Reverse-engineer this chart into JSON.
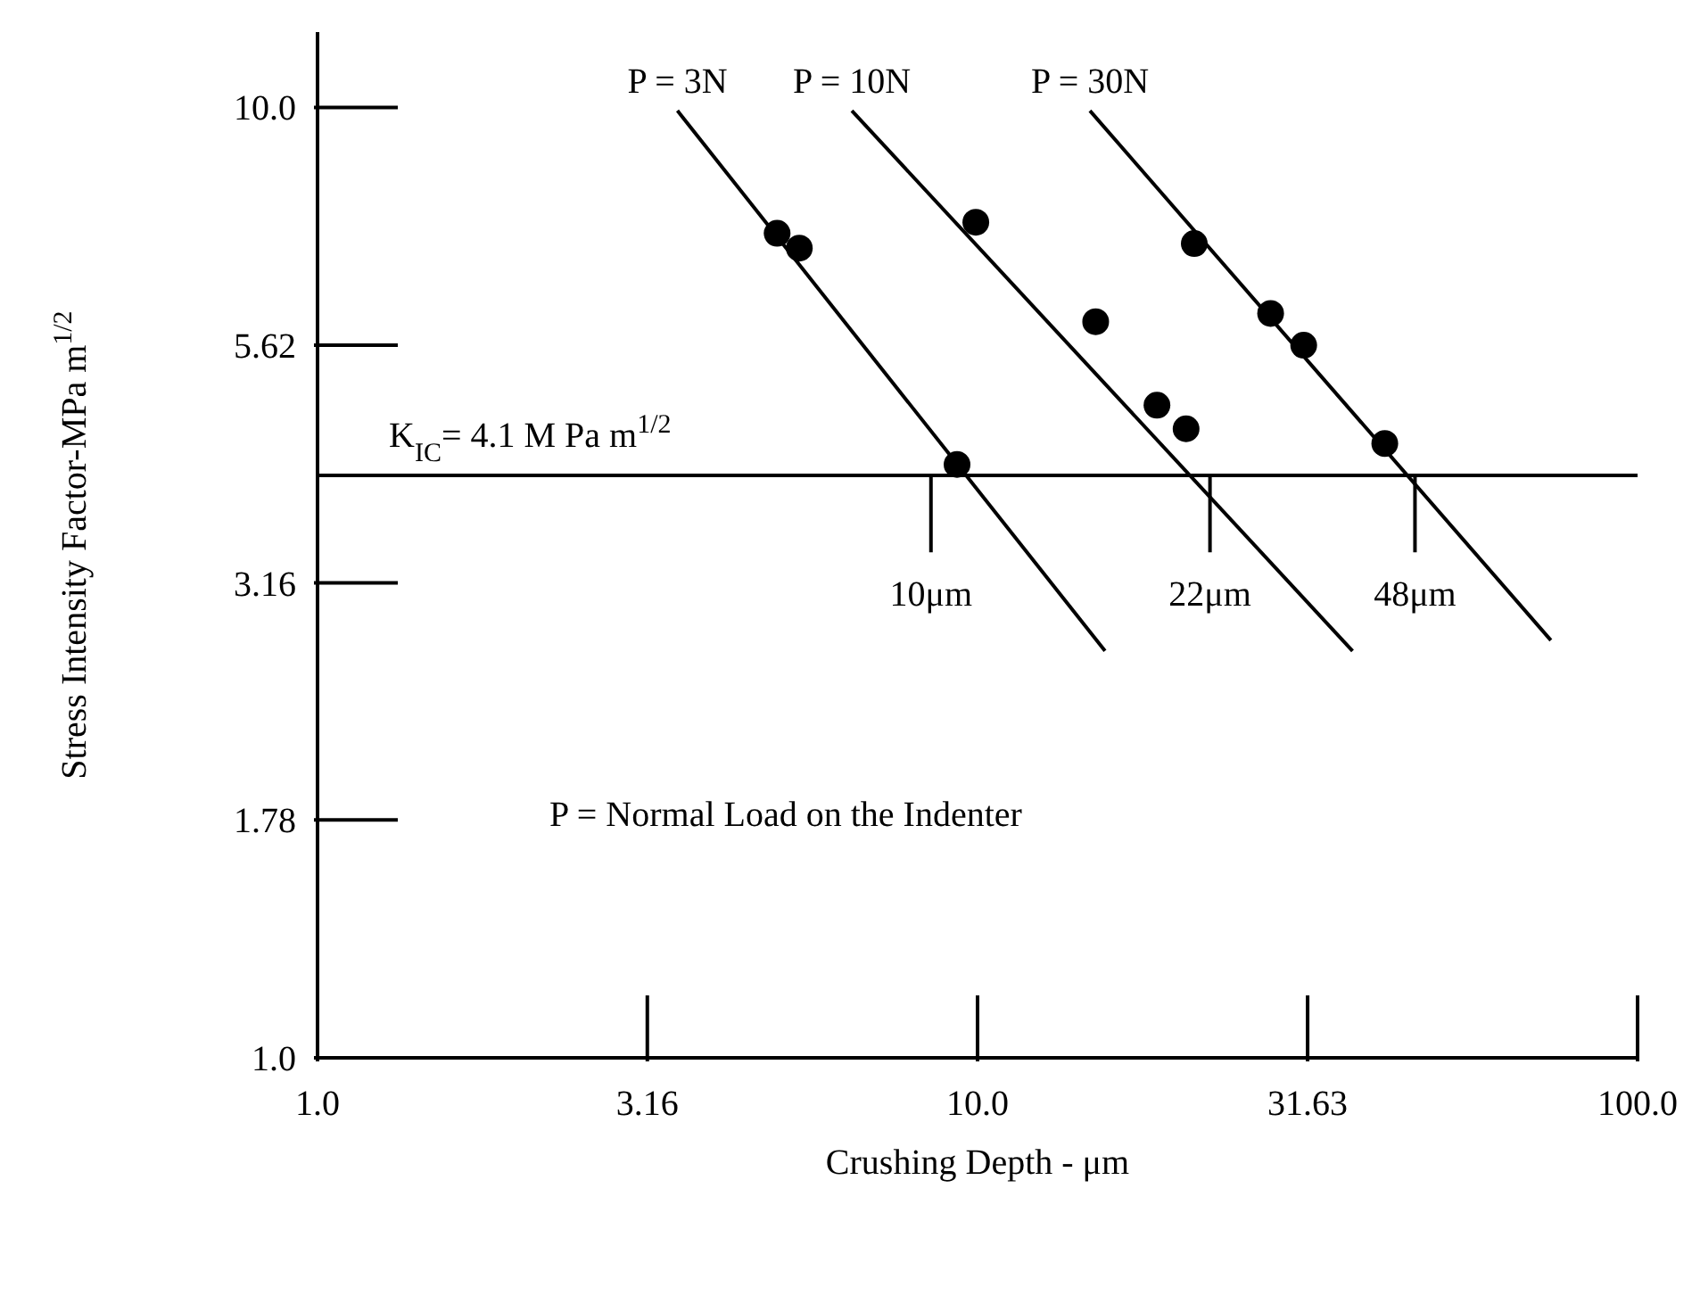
{
  "chart_data": {
    "type": "scatter",
    "xlabel": "Crushing Depth - μm",
    "ylabel": "Stress Intensity Factor-MPa m$^{1/2}$",
    "log": "xy",
    "xlim": [
      1,
      100
    ],
    "ylim": [
      1,
      12
    ],
    "xticks": [
      {
        "value": 1,
        "label": "1.0"
      },
      3.16,
      {
        "value": 10,
        "label": "10.0"
      },
      31.63,
      {
        "value": 100,
        "label": "100.0"
      }
    ],
    "yticks": [
      {
        "value": 1,
        "label": "1.0"
      },
      1.78,
      3.16,
      5.62,
      {
        "value": 10,
        "label": "10.0"
      }
    ],
    "grid": false,
    "legend": false,
    "marker": "circle",
    "series": [
      {
        "type": "line",
        "name": "P = 3N",
        "color": "#000000",
        "x": [
          3.51,
          15.6
        ],
        "values": [
          9.92,
          2.68
        ],
        "marker": "none"
      },
      {
        "type": "line",
        "name": "P = 10N",
        "color": "#000000",
        "x": [
          6.45,
          37.0
        ],
        "values": [
          9.92,
          2.68
        ],
        "marker": "none"
      },
      {
        "type": "line",
        "name": "P = 30N",
        "color": "#000000",
        "x": [
          14.8,
          73.9
        ],
        "values": [
          9.92,
          2.75
        ],
        "marker": "none"
      },
      {
        "color": "#000000",
        "x": [
          4.97,
          5.37,
          9.31
        ],
        "values": [
          7.37,
          7.11,
          4.21
        ]
      },
      {
        "color": "#000000",
        "x": [
          9.94,
          15.1,
          18.7,
          20.7
        ],
        "values": [
          7.57,
          5.95,
          4.86,
          4.59
        ]
      },
      {
        "color": "#000000",
        "x": [
          21.3,
          27.8,
          31.2,
          41.4
        ],
        "values": [
          7.19,
          6.07,
          5.62,
          4.43
        ]
      }
    ],
    "ref_lines": [
      {
        "axis": "y",
        "value": 4.1,
        "label": "K$_{IC}$= 4.1 M Pa m$^{1/2}$",
        "color": "#000000"
      },
      {
        "axis": "x",
        "value": 8.5,
        "label": "10μm",
        "color": "#000000"
      },
      {
        "axis": "x",
        "value": 22.5,
        "label": "22μm",
        "color": "#000000"
      },
      {
        "axis": "x",
        "value": 46,
        "label": "48μm",
        "color": "#000000"
      }
    ],
    "annotations": [
      "P = Normal Load on the Indenter"
    ]
  }
}
